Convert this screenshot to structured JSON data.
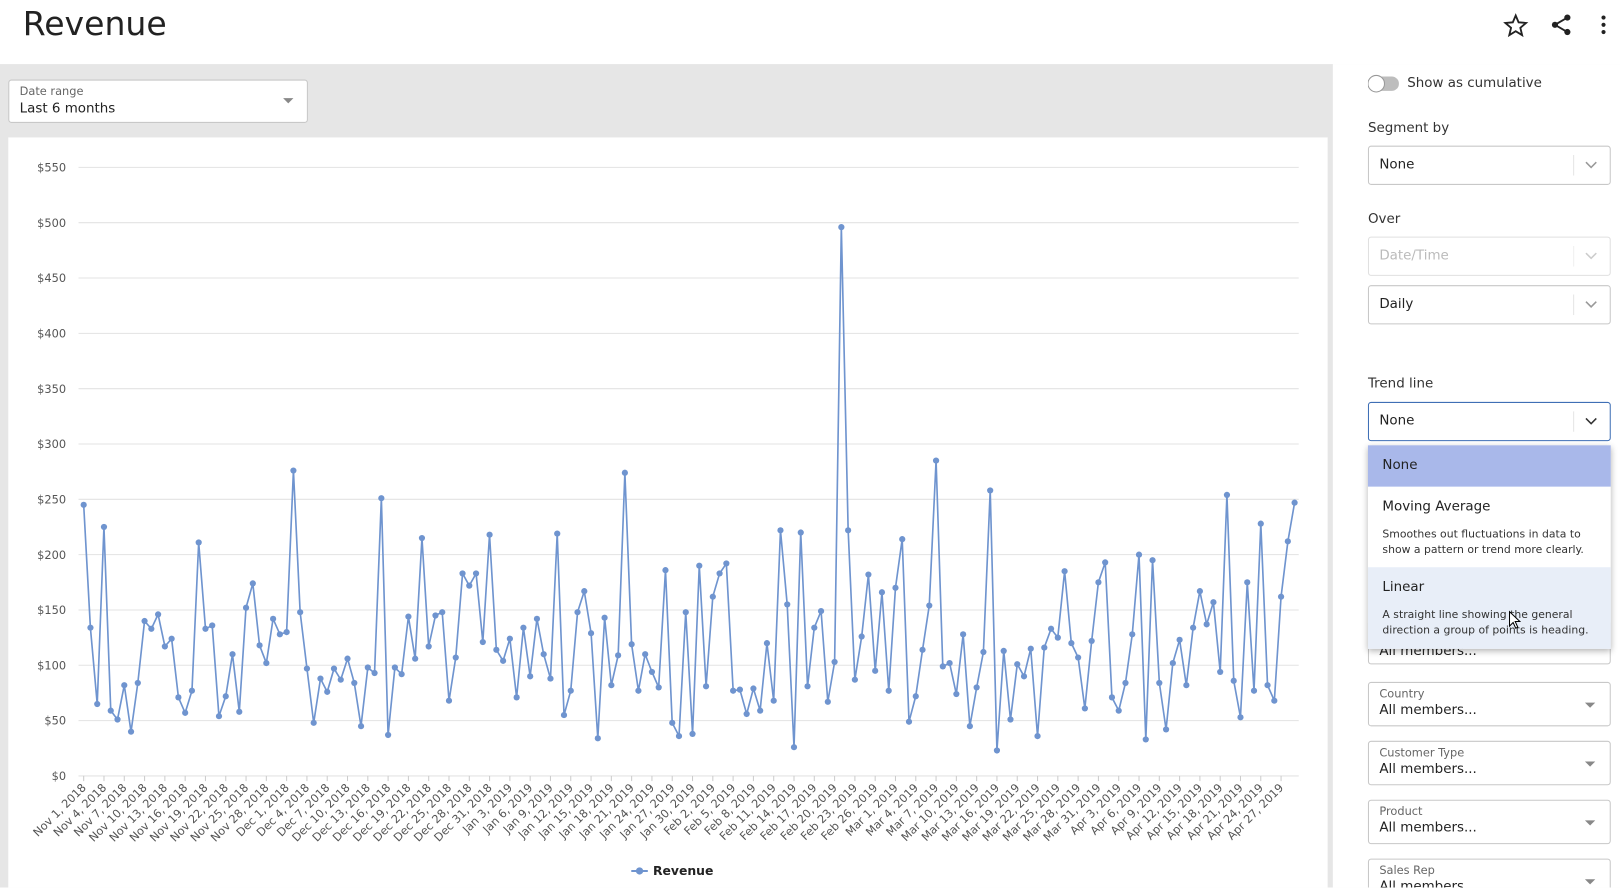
{
  "header": {
    "title": "Revenue"
  },
  "date_range": {
    "label": "Date range",
    "value": "Last 6 months"
  },
  "chart_data": {
    "type": "line",
    "legend": "bottom",
    "grid": true,
    "ylim": [
      0,
      550
    ],
    "yticks": [
      {
        "value": 0,
        "label": "$0"
      },
      {
        "value": 50,
        "label": "$50"
      },
      {
        "value": 100,
        "label": "$100"
      },
      {
        "value": 150,
        "label": "$150"
      },
      {
        "value": 200,
        "label": "$200"
      },
      {
        "value": 250,
        "label": "$250"
      },
      {
        "value": 300,
        "label": "$300"
      },
      {
        "value": 350,
        "label": "$350"
      },
      {
        "value": 400,
        "label": "$400"
      },
      {
        "value": 450,
        "label": "$450"
      },
      {
        "value": 500,
        "label": "$500"
      },
      {
        "value": 550,
        "label": "$550"
      }
    ],
    "categories": [
      "Nov 1, 2018",
      null,
      null,
      "Nov 4, 2018",
      null,
      null,
      "Nov 7, 2018",
      null,
      null,
      "Nov 10, 2018",
      null,
      null,
      "Nov 13, 2018",
      null,
      null,
      "Nov 16, 2018",
      null,
      null,
      "Nov 19, 2018",
      null,
      null,
      "Nov 22, 2018",
      null,
      null,
      "Nov 25, 2018",
      null,
      null,
      "Nov 28, 2018",
      null,
      null,
      "Dec 1, 2018",
      null,
      null,
      "Dec 4, 2018",
      null,
      null,
      "Dec 7, 2018",
      null,
      null,
      "Dec 10, 2018",
      null,
      null,
      "Dec 13, 2018",
      null,
      null,
      "Dec 16, 2018",
      null,
      null,
      "Dec 19, 2018",
      null,
      null,
      "Dec 22, 2018",
      null,
      null,
      "Dec 25, 2018",
      null,
      null,
      "Dec 28, 2018",
      null,
      null,
      "Dec 31, 2018",
      null,
      null,
      "Jan 3, 2019",
      null,
      null,
      "Jan 6, 2019",
      null,
      null,
      "Jan 9, 2019",
      null,
      null,
      "Jan 12, 2019",
      null,
      null,
      "Jan 15, 2019",
      null,
      null,
      "Jan 18, 2019",
      null,
      null,
      "Jan 21, 2019",
      null,
      null,
      "Jan 24, 2019",
      null,
      null,
      "Jan 27, 2019",
      null,
      null,
      "Jan 30, 2019",
      null,
      null,
      "Feb 2, 2019",
      null,
      null,
      "Feb 5, 2019",
      null,
      null,
      "Feb 8, 2019",
      null,
      null,
      "Feb 11, 2019",
      null,
      null,
      "Feb 14, 2019",
      null,
      null,
      "Feb 17, 2019",
      null,
      null,
      "Feb 20, 2019",
      null,
      null,
      "Feb 23, 2019",
      null,
      null,
      "Feb 26, 2019",
      null,
      null,
      "Mar 1, 2019",
      null,
      null,
      "Mar 4, 2019",
      null,
      null,
      "Mar 7, 2019",
      null,
      null,
      "Mar 10, 2019",
      null,
      null,
      "Mar 13, 2019",
      null,
      null,
      "Mar 16, 2019",
      null,
      null,
      "Mar 19, 2019",
      null,
      null,
      "Mar 22, 2019",
      null,
      null,
      "Mar 25, 2019",
      null,
      null,
      "Mar 28, 2019",
      null,
      null,
      "Mar 31, 2019",
      null,
      null,
      "Apr 3, 2019",
      null,
      null,
      "Apr 6, 2019",
      null,
      null,
      "Apr 9, 2019",
      null,
      null,
      "Apr 12, 2019",
      null,
      null,
      "Apr 15, 2019",
      null,
      null,
      "Apr 18, 2019",
      null,
      null,
      "Apr 21, 2019",
      null,
      null,
      "Apr 24, 2019",
      null,
      null,
      "Apr 27, 2019",
      null,
      null
    ],
    "series": [
      {
        "name": "Revenue",
        "color": "#6f94cf",
        "values": [
          245,
          134,
          65,
          225,
          59,
          51,
          82,
          40,
          84,
          140,
          133,
          146,
          117,
          124,
          71,
          57,
          77,
          211,
          133,
          136,
          54,
          72,
          110,
          58,
          152,
          174,
          118,
          102,
          142,
          128,
          130,
          276,
          148,
          97,
          48,
          88,
          76,
          97,
          87,
          106,
          84,
          45,
          98,
          93,
          251,
          37,
          98,
          92,
          144,
          106,
          215,
          117,
          145,
          148,
          68,
          107,
          183,
          172,
          183,
          121,
          218,
          114,
          104,
          124,
          71,
          134,
          90,
          142,
          110,
          88,
          219,
          55,
          77,
          148,
          167,
          129,
          34,
          143,
          82,
          109,
          274,
          119,
          77,
          110,
          94,
          80,
          186,
          48,
          36,
          148,
          38,
          190,
          81,
          162,
          183,
          192,
          77,
          78,
          56,
          79,
          59,
          120,
          68,
          222,
          155,
          26,
          220,
          81,
          134,
          149,
          67,
          103,
          496,
          222,
          87,
          126,
          182,
          95,
          166,
          77,
          170,
          214,
          49,
          72,
          114,
          154,
          285,
          99,
          102,
          74,
          128,
          45,
          80,
          112,
          258,
          23,
          113,
          51,
          101,
          90,
          115,
          36,
          116,
          133,
          125,
          185,
          120,
          107,
          61,
          122,
          175,
          193,
          71,
          59,
          84,
          128,
          200,
          33,
          195,
          84,
          42,
          102,
          123,
          82,
          134,
          167,
          137,
          157,
          94,
          254,
          86,
          53,
          175,
          77,
          228,
          82,
          68,
          162,
          212,
          247
        ]
      }
    ]
  },
  "panel": {
    "cumulative": "Show as cumulative",
    "segment_label": "Segment by",
    "segment_value": "None",
    "over_label": "Over",
    "over_field": "Date/Time",
    "over_value": "Daily",
    "trend_label": "Trend line",
    "trend_value": "None",
    "trend_options": [
      {
        "name": "None"
      },
      {
        "name": "Moving Average",
        "description": "Smoothes out fluctuations in data to show a pattern or trend more clearly."
      },
      {
        "name": "Linear",
        "description": "A straight line showing the general direction a group of points is heading."
      }
    ],
    "filters": [
      {
        "value": "All members..."
      },
      {
        "label": "Country",
        "value": "All members..."
      },
      {
        "label": "Customer Type",
        "value": "All members..."
      },
      {
        "label": "Product",
        "value": "All members..."
      },
      {
        "label": "Sales Rep",
        "value": "All members..."
      }
    ]
  }
}
